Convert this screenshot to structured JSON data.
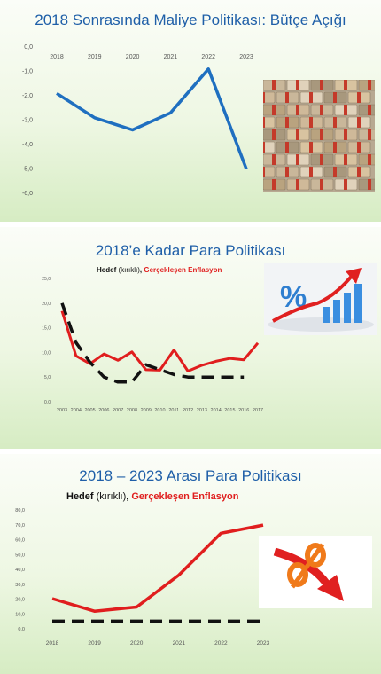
{
  "chart_data": [
    {
      "type": "line",
      "title": "2018 Sonrasında Maliye Politikası: Bütçe Açığı",
      "categories": [
        "2018",
        "2019",
        "2020",
        "2021",
        "2022",
        "2023"
      ],
      "y_tick_labels": [
        "0,0",
        "-1,0",
        "-2,0",
        "-3,0",
        "-4,0",
        "-5,0",
        "-6,0"
      ],
      "ylim": [
        -6,
        0
      ],
      "series": [
        {
          "color": "#1f6fc0",
          "dashed": false,
          "values": [
            -1.9,
            -2.9,
            -3.4,
            -2.7,
            -0.9,
            -5.0
          ]
        }
      ],
      "grid": false
    },
    {
      "type": "line",
      "title": "2018’e Kadar Para Politikası",
      "legend": {
        "part1": "Hedef ",
        "part2": "(kırıklı)",
        "part3": ", ",
        "part4": "Gerçekleşen Enflasyon"
      },
      "categories": [
        "2003",
        "2004",
        "2005",
        "2006",
        "2007",
        "2008",
        "2009",
        "2010",
        "2011",
        "2012",
        "2013",
        "2014",
        "2015",
        "2016",
        "2017"
      ],
      "y_tick_labels": [
        "25,0",
        "20,0",
        "15,0",
        "10,0",
        "5,0",
        "0,0"
      ],
      "ylim": [
        0,
        25
      ],
      "series": [
        {
          "color": "#e01e1e",
          "dashed": false,
          "values": [
            18.4,
            9.3,
            7.7,
            9.7,
            8.4,
            10.1,
            6.5,
            6.4,
            10.5,
            6.2,
            7.4,
            8.2,
            8.8,
            8.5,
            11.9
          ]
        },
        {
          "color": "#111111",
          "dashed": true,
          "values": [
            20,
            12,
            8,
            5,
            4,
            4,
            7.5,
            6.5,
            5.5,
            5,
            5,
            5,
            5,
            5,
            null
          ]
        }
      ],
      "grid": false
    },
    {
      "type": "line",
      "title": "2018 – 2023 Arası Para Politikası",
      "legend": {
        "part1": "Hedef ",
        "part2": "(kırıklı)",
        "part3": ", ",
        "part4": "Gerçekleşen Enflasyon"
      },
      "categories": [
        "2018",
        "2019",
        "2020",
        "2021",
        "2022",
        "2023"
      ],
      "y_tick_labels": [
        "80,0",
        "70,0",
        "60,0",
        "50,0",
        "40,0",
        "30,0",
        "20,0",
        "10,0",
        "0,0"
      ],
      "ylim": [
        0,
        80
      ],
      "series": [
        {
          "color": "#e01e1e",
          "dashed": false,
          "values": [
            20.3,
            11.8,
            14.6,
            36.1,
            64.3,
            69.8
          ]
        },
        {
          "color": "#111111",
          "dashed": true,
          "values": [
            5,
            5,
            5,
            5,
            5,
            5
          ]
        }
      ],
      "grid": false
    }
  ],
  "images": {
    "money_photo": "stacks-of-banknotes",
    "percent_up_photo": "percent-sign-with-rising-bar-chart-and-red-arrow",
    "percent_down_photo": "orange-percent-sign-with-red-downward-arrow"
  }
}
